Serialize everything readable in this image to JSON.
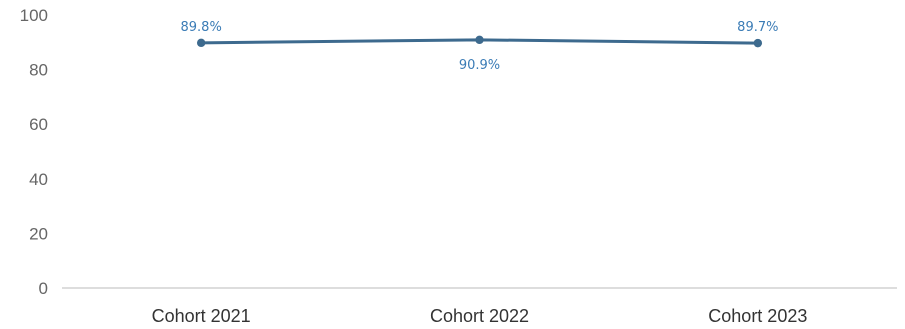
{
  "chart_data": {
    "type": "line",
    "categories": [
      "Cohort 2021",
      "Cohort 2022",
      "Cohort 2023"
    ],
    "series": [
      {
        "values": [
          89.8,
          90.9,
          89.7
        ],
        "data_labels": [
          "89.8%",
          "90.9%",
          "89.7%"
        ]
      }
    ],
    "y_ticks": [
      "0",
      "20",
      "40",
      "60",
      "80",
      "100"
    ],
    "ylim": [
      0,
      100
    ],
    "grid": false,
    "legend": "none",
    "colors": {
      "line": "#3d6a8e",
      "marker": "#3d6a8e",
      "data_label": "#3b7cb6",
      "axis": "#bbbbbb"
    }
  }
}
